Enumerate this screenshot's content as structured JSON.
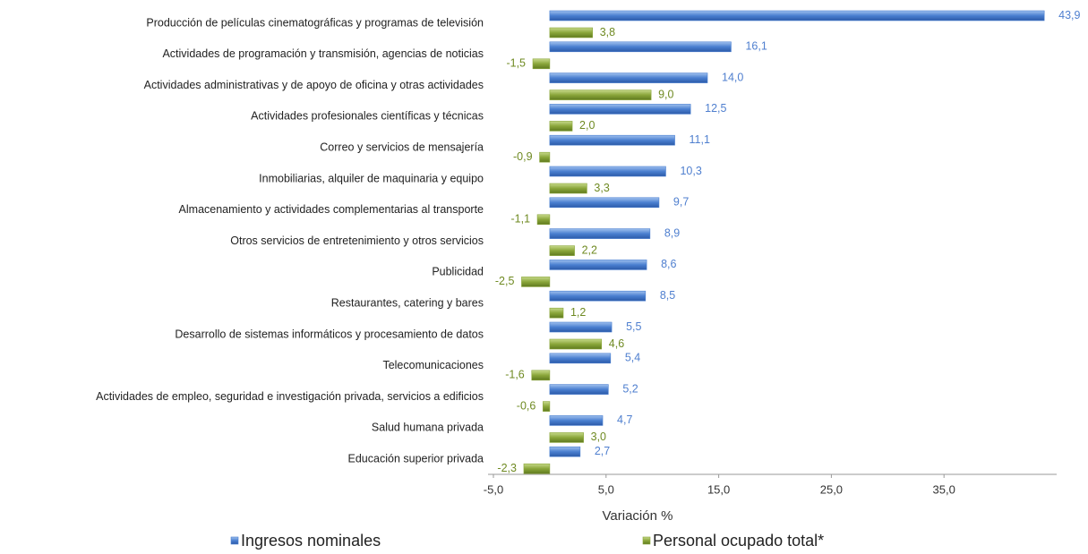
{
  "chart_data": {
    "type": "hbar",
    "x_label": "Variación %",
    "categories": [
      "Producción de películas cinematográficas y programas de televisión",
      "Actividades de programación y transmisión, agencias de noticias",
      "Actividades administrativas y de apoyo de oficina y otras actividades",
      "Actividades profesionales científicas y técnicas",
      "Correo y servicios de mensajería",
      "Inmobiliarias, alquiler de maquinaria y equipo",
      "Almacenamiento y actividades complementarias al transporte",
      "Otros servicios de entretenimiento y otros servicios",
      "Publicidad",
      "Restaurantes, catering y bares",
      "Desarrollo de sistemas informáticos y procesamiento de datos",
      "Telecomunicaciones",
      "Actividades de empleo, seguridad e investigación privada, servicios a edificios",
      "Salud humana privada",
      "Educación superior privada"
    ],
    "series": [
      {
        "name": "Ingresos nominales",
        "color": "#4a7fd0",
        "values": [
          43.9,
          16.1,
          14.0,
          12.5,
          11.1,
          10.3,
          9.7,
          8.9,
          8.6,
          8.5,
          5.5,
          5.4,
          5.2,
          4.7,
          2.7
        ],
        "value_labels": [
          "43,9",
          "16,1",
          "14,0",
          "12,5",
          "11,1",
          "10,3",
          "9,7",
          "8,9",
          "8,6",
          "8,5",
          "5,5",
          "5,4",
          "5,2",
          "4,7",
          "2,7"
        ]
      },
      {
        "name": "Personal ocupado total*",
        "color": "#8aa63a",
        "values": [
          3.8,
          -1.5,
          9.0,
          2.0,
          -0.9,
          3.3,
          -1.1,
          2.2,
          -2.5,
          1.2,
          4.6,
          -1.6,
          -0.6,
          3.0,
          -2.3
        ],
        "value_labels": [
          "3,8",
          "-1,5",
          "9,0",
          "2,0",
          "-0,9",
          "3,3",
          "-1,1",
          "2,2",
          "-2,5",
          "1,2",
          "4,6",
          "-1,6",
          "-0,6",
          "3,0",
          "-2,3"
        ]
      }
    ],
    "xlim": [
      -5,
      45
    ],
    "xticks": [
      {
        "value": -5,
        "label": "-5,0"
      },
      {
        "value": 5,
        "label": "5,0"
      },
      {
        "value": 15,
        "label": "15,0"
      },
      {
        "value": 25,
        "label": "25,0"
      },
      {
        "value": 35,
        "label": "35,0"
      }
    ],
    "legend": "bottom"
  }
}
